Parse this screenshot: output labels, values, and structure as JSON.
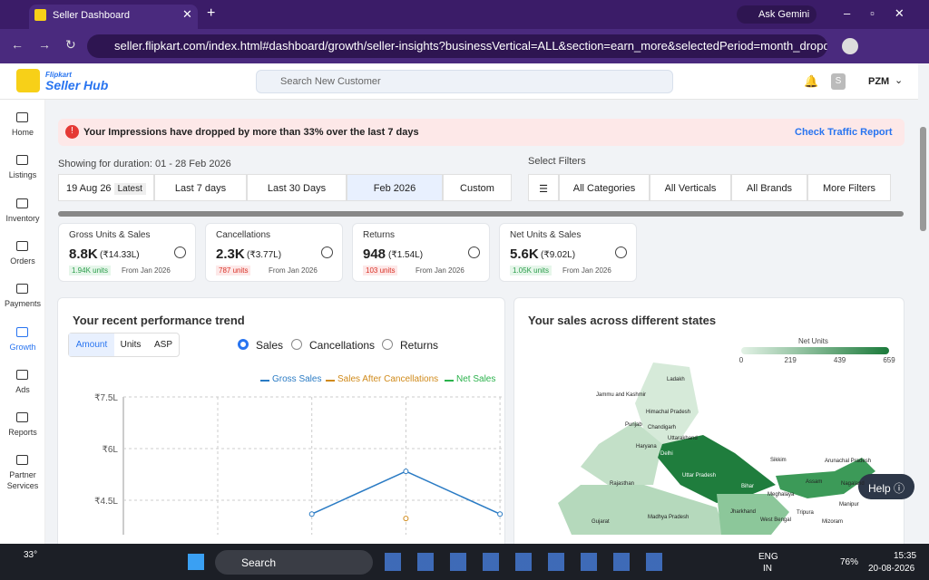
{
  "browser": {
    "tab_title": "Seller Dashboard",
    "ask_gemini": "Ask Gemini",
    "url": "seller.flipkart.com/index.html#dashboard/growth/seller-insights?businessVertical=ALL&section=earn_more&selectedPeriod=month_dropdown&..."
  },
  "header": {
    "brand_top": "Flipkart",
    "brand": "Seller Hub",
    "search_placeholder": "Search New Customer",
    "avatar": "S",
    "user": "PZM"
  },
  "sidebar": [
    "Home",
    "Listings",
    "Inventory",
    "Orders",
    "Payments",
    "Growth",
    "Ads",
    "Reports",
    "Partner Services"
  ],
  "alert": {
    "text": "Your Impressions have dropped by more than 33% over the last 7 days",
    "link": "Check Traffic Report"
  },
  "duration": {
    "label": "Showing for duration: 01 - 28 Feb 2026",
    "first": "19 Aug 26",
    "badge": "Latest",
    "options": [
      "Last 7 days",
      "Last 30 Days",
      "Feb 2026",
      "Custom"
    ]
  },
  "filters": {
    "label": "Select Filters",
    "items": [
      "All Categories",
      "All Verticals",
      "All Brands",
      "More Filters"
    ]
  },
  "metrics": [
    {
      "title": "Gross Units & Sales",
      "value": "8.8K",
      "amount": "(₹14.33L)",
      "change": "1.94K units",
      "from": "From Jan 2026"
    },
    {
      "title": "Cancellations",
      "value": "2.3K",
      "amount": "(₹3.77L)",
      "change": "787 units",
      "from": "From Jan 2026"
    },
    {
      "title": "Returns",
      "value": "948",
      "amount": "(₹1.54L)",
      "change": "103 units",
      "from": "From Jan 2026"
    },
    {
      "title": "Net Units & Sales",
      "value": "5.6K",
      "amount": "(₹9.02L)",
      "change": "1.05K units",
      "from": "From Jan 2026"
    }
  ],
  "trend": {
    "title": "Your recent performance trend",
    "tabs": [
      "Amount",
      "Units",
      "ASP"
    ],
    "radios": [
      "Sales",
      "Cancellations",
      "Returns"
    ],
    "chart": {
      "type": "line",
      "categories": [
        null,
        null,
        null,
        null
      ],
      "series": [
        {
          "name": "Gross Sales",
          "color": "#2a7bc4",
          "values": [
            null,
            4.1,
            5.34,
            4.1
          ]
        },
        {
          "name": "Sales After Cancellations",
          "color": "#d08a1a",
          "values": [
            null,
            null,
            3.97,
            null
          ]
        },
        {
          "name": "Net Sales",
          "color": "#2bb24c",
          "values": [
            null,
            null,
            null,
            null
          ]
        }
      ],
      "ylim": [
        3.5,
        7.5
      ],
      "yticks": [
        {
          "value": 7.5,
          "label": "₹7.5L"
        },
        {
          "value": 6,
          "label": "₹6L"
        },
        {
          "value": 4.5,
          "label": "₹4.5L"
        }
      ],
      "grid": true
    }
  },
  "map": {
    "title": "Your sales across different states",
    "legend_title": "Net Units",
    "legend_ticks": [
      0,
      219,
      439,
      659
    ],
    "states": [
      "Ladakh",
      "Jammu and Kashmir",
      "Himachal Pradesh",
      "Punjab",
      "Chandigarh",
      "Uttarakhand",
      "Haryana",
      "Delhi",
      "Rajasthan",
      "Uttar Pradesh",
      "Bihar",
      "Sikkim",
      "Arunachal Pradesh",
      "Assam",
      "Nagaland",
      "Meghalaya",
      "Manipur",
      "Tripura",
      "Mizoram",
      "Jharkhand",
      "West Bengal",
      "Madhya Pradesh",
      "Gujarat"
    ]
  },
  "help": "Help",
  "taskbar": {
    "temp": "33°",
    "search": "Search",
    "lang": "ENG",
    "lang2": "IN",
    "battery": "76%",
    "time": "15:35",
    "date": "20-08-2026"
  }
}
